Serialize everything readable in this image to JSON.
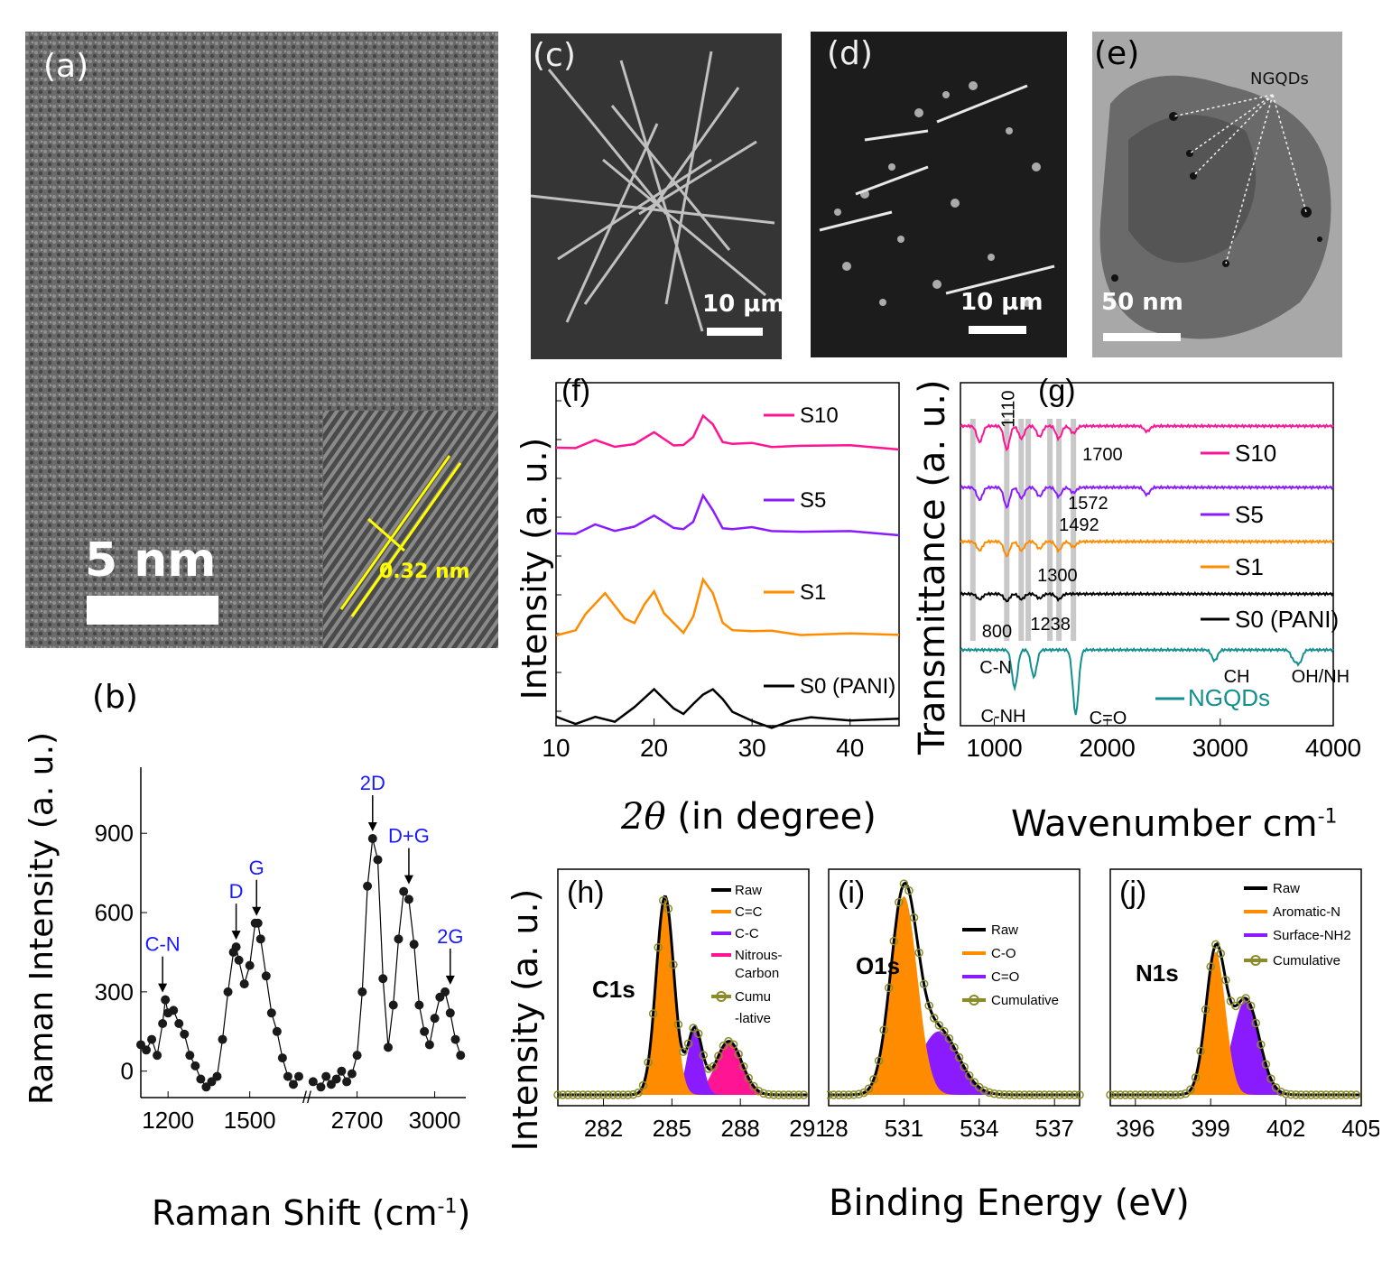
{
  "figure": {
    "panel_labels": {
      "a": "(a)",
      "b": "(b)",
      "c": "(c)",
      "d": "(d)",
      "e": "(e)",
      "f": "(f)",
      "g": "(g)",
      "h": "(h)",
      "i": "(i)",
      "j": "(j)"
    },
    "scale_bars": {
      "a": "5 nm",
      "c": "10 µm",
      "d": "10 µm",
      "e": "50 nm"
    },
    "a_spacing": "0.32 nm",
    "e_annotation": "NGQDs",
    "b_ylabel": "Raman Intensity (a. u.)",
    "b_xlabel_main": "Raman Shift (cm",
    "b_xlabel_sup": "-1",
    "b_xlabel_end": ")",
    "f_ylabel": "Intensity (a. u.)",
    "f_xlabel_sym": "2θ",
    "f_xlabel_rest": " (in degree)",
    "g_ylabel": "Transmittance (a. u.)",
    "g_xlabel_main": "Wavenumber cm",
    "g_xlabel_sup": "-1",
    "hij_ylabel": "Intensity (a. u.)",
    "hij_xlabel": "Binding Energy (eV)"
  },
  "chart_data": [
    {
      "id": "b",
      "type": "scatter",
      "title": "",
      "xlabel": "Raman Shift (cm-1)",
      "ylabel": "Raman Intensity (a. u.)",
      "x_ticks": [
        "1200",
        "1500",
        "2700",
        "3000"
      ],
      "y_ticks": [
        "0",
        "300",
        "600",
        "900"
      ],
      "ylim": [
        -100,
        1150
      ],
      "segments": [
        {
          "xlim": [
            1100,
            1680
          ],
          "x": [
            1100,
            1120,
            1140,
            1160,
            1180,
            1190,
            1200,
            1220,
            1240,
            1260,
            1280,
            1300,
            1320,
            1340,
            1360,
            1380,
            1400,
            1420,
            1440,
            1450,
            1460,
            1480,
            1500,
            1520,
            1530,
            1540,
            1560,
            1580,
            1600,
            1620,
            1640,
            1660,
            1680
          ],
          "y": [
            100,
            80,
            120,
            60,
            180,
            270,
            220,
            230,
            180,
            140,
            60,
            20,
            -30,
            -60,
            -40,
            -20,
            120,
            300,
            450,
            470,
            420,
            330,
            400,
            560,
            560,
            500,
            360,
            220,
            150,
            50,
            -20,
            -50,
            -20
          ]
        },
        {
          "xlim": [
            2520,
            3120
          ],
          "x": [
            2530,
            2560,
            2580,
            2600,
            2620,
            2640,
            2660,
            2680,
            2700,
            2720,
            2740,
            2760,
            2780,
            2800,
            2820,
            2840,
            2860,
            2880,
            2900,
            2920,
            2940,
            2960,
            2980,
            3000,
            3020,
            3040,
            3060,
            3080,
            3100
          ],
          "y": [
            -40,
            -60,
            -20,
            -50,
            -30,
            0,
            -40,
            -10,
            60,
            300,
            700,
            880,
            800,
            350,
            90,
            250,
            500,
            680,
            650,
            480,
            250,
            150,
            100,
            200,
            280,
            300,
            220,
            120,
            60
          ]
        }
      ],
      "annotations": [
        "C-N",
        "D",
        "G",
        "2D",
        "D+G",
        "2G"
      ],
      "annotation_x": [
        1180,
        1450,
        1525,
        2760,
        2900,
        3060
      ],
      "annotation_y": [
        270,
        470,
        560,
        880,
        680,
        300
      ]
    },
    {
      "id": "f",
      "type": "line",
      "title": "",
      "xlabel": "2θ (in degree)",
      "ylabel": "Intensity (a. u.)",
      "xlim": [
        10,
        45
      ],
      "x_ticks": [
        "10",
        "20",
        "30",
        "40"
      ],
      "series": [
        {
          "name": "S10",
          "color": "#ff1493",
          "x": [
            10,
            12,
            14,
            16,
            18,
            20,
            22,
            23,
            24,
            25,
            26,
            27,
            28,
            30,
            32,
            35,
            40,
            45
          ],
          "y": [
            0,
            0.05,
            0.3,
            0.1,
            0.2,
            0.7,
            0.2,
            0.1,
            0.5,
            1.7,
            1.1,
            0.3,
            0.25,
            0.15,
            0.1,
            0.1,
            0.05,
            0
          ]
        },
        {
          "name": "S5",
          "color": "#8b1bff",
          "x": [
            10,
            12,
            14,
            16,
            18,
            20,
            22,
            23,
            24,
            25,
            26,
            27,
            28,
            30,
            32,
            35,
            40,
            45
          ],
          "y": [
            0,
            0.05,
            0.4,
            0.2,
            0.4,
            0.9,
            0.4,
            0.2,
            0.6,
            2.2,
            1.2,
            0.3,
            0.3,
            0.25,
            0.2,
            0.1,
            0.05,
            0
          ]
        },
        {
          "name": "S1",
          "color": "#ff8c00",
          "x": [
            10,
            12,
            13,
            15,
            17,
            18,
            19,
            20,
            21,
            23,
            24,
            25,
            26,
            27,
            28,
            30,
            32,
            35,
            40,
            45
          ],
          "y": [
            0,
            0.3,
            0.9,
            2.0,
            0.8,
            0.5,
            1.5,
            2.0,
            1.0,
            0.2,
            0.8,
            2.6,
            2.0,
            0.5,
            0.3,
            0.2,
            0.15,
            0.1,
            0.05,
            0
          ]
        },
        {
          "name": "S0 (PANI)",
          "color": "#000000",
          "x": [
            10,
            12,
            14,
            16,
            18,
            20,
            22,
            23,
            24,
            25,
            26,
            27,
            28,
            30,
            32,
            34,
            36,
            40,
            45
          ],
          "y": [
            0,
            -0.3,
            -0.1,
            -0.2,
            0.5,
            1.3,
            0.5,
            0.1,
            0.6,
            1.2,
            1.3,
            0.9,
            0.3,
            -0.3,
            -0.5,
            -0.2,
            -0.1,
            -0.1,
            -0.15
          ]
        }
      ]
    },
    {
      "id": "g",
      "type": "line",
      "title": "",
      "xlabel": "Wavenumber cm-1",
      "ylabel": "Transmittance (a. u.)",
      "xlim": [
        700,
        4000
      ],
      "x_ticks": [
        "1000",
        "2000",
        "3000",
        "4000"
      ],
      "series": [
        {
          "name": "S10",
          "color": "#ff1493"
        },
        {
          "name": "S5",
          "color": "#8b1bff"
        },
        {
          "name": "S1",
          "color": "#ff8c00"
        },
        {
          "name": "S0 (PANI)",
          "color": "#000000"
        },
        {
          "name": "NGQDs",
          "color": "#138f8f"
        }
      ],
      "annotations": [
        "1110",
        "1700",
        "1572",
        "1492",
        "1300",
        "800",
        "1238",
        "C-N",
        "C-NH",
        "C=O",
        "CH",
        "OH/NH"
      ]
    },
    {
      "id": "h",
      "type": "area",
      "title": "C1s",
      "xlim": [
        280,
        291
      ],
      "x_ticks": [
        "282",
        "285",
        "288",
        "291"
      ],
      "series": [
        {
          "name": "Raw",
          "color": "#000000"
        },
        {
          "name": "C=C",
          "color": "#ff8c00",
          "center": 284.7,
          "height": 1.0,
          "width": 0.55
        },
        {
          "name": "C-C",
          "color": "#8b1bff",
          "center": 286.0,
          "height": 0.33,
          "width": 0.45
        },
        {
          "name": "Nitrous-Carbon",
          "color": "#ff1493",
          "center": 287.5,
          "height": 0.27,
          "width": 0.8
        },
        {
          "name": "Cumulative",
          "color": "#8b8b2b"
        }
      ],
      "legend": [
        "Raw",
        "C=C",
        "C-C",
        "Nitrous-",
        "Carbon",
        "Cumu",
        "-lative"
      ]
    },
    {
      "id": "i",
      "type": "area",
      "title": "O1s",
      "xlim": [
        528,
        538
      ],
      "x_ticks": [
        "528",
        "531",
        "534",
        "537"
      ],
      "series": [
        {
          "name": "Raw",
          "color": "#000000"
        },
        {
          "name": "C-O",
          "color": "#ff8c00",
          "center": 531.0,
          "height": 1.0,
          "width": 0.75
        },
        {
          "name": "C=O",
          "color": "#8b1bff",
          "center": 532.4,
          "height": 0.32,
          "width": 1.1
        },
        {
          "name": "Cumulative",
          "color": "#8b8b2b"
        }
      ]
    },
    {
      "id": "j",
      "type": "area",
      "title": "N1s",
      "xlim": [
        395,
        405
      ],
      "x_ticks": [
        "396",
        "399",
        "402",
        "405"
      ],
      "series": [
        {
          "name": "Raw",
          "color": "#000000"
        },
        {
          "name": "Aromatic-N",
          "color": "#ff8c00",
          "center": 399.2,
          "height": 0.72,
          "width": 0.55
        },
        {
          "name": "Surface-NH2",
          "color": "#8b1bff",
          "center": 400.4,
          "height": 0.48,
          "width": 0.75
        },
        {
          "name": "Cumulative",
          "color": "#8b8b2b"
        }
      ]
    }
  ]
}
